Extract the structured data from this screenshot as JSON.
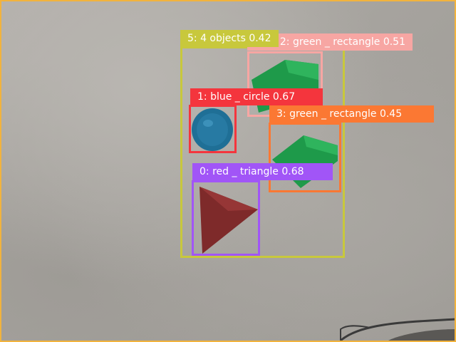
{
  "detections": [
    {
      "label": "5: 4 objects 0.42",
      "color": "#c8c83c"
    },
    {
      "label": "2: green _ rectangle 0.51",
      "color": "#f7a6a3"
    },
    {
      "label": "1: blue _ circle 0.67",
      "color": "#f4353d"
    },
    {
      "label": "3: green _ rectangle 0.45",
      "color": "#fb7833"
    },
    {
      "label": "0: red _ triangle 0.68",
      "color": "#a155f7"
    }
  ]
}
